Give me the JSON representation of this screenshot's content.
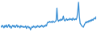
{
  "chart_data": {
    "type": "line",
    "color": "#3a8fd4",
    "ylim": [
      0,
      100
    ],
    "tick_labels": false,
    "values": [
      26,
      22,
      28,
      24,
      20,
      27,
      23,
      29,
      21,
      25,
      30,
      22,
      26,
      19,
      24,
      28,
      23,
      27,
      21,
      25,
      29,
      22,
      26,
      24,
      20,
      27,
      23,
      25,
      21,
      24,
      22,
      26,
      18,
      23,
      25,
      20,
      22,
      14,
      19,
      24,
      21,
      26,
      23,
      20,
      25,
      22,
      27,
      24,
      21,
      26,
      23,
      28,
      25,
      22,
      27,
      24,
      29,
      26,
      35,
      38,
      36,
      40,
      37,
      39,
      36,
      41,
      38,
      37,
      40,
      42,
      80,
      45,
      40,
      44,
      42,
      47,
      43,
      46,
      56,
      44,
      41,
      45,
      48,
      43,
      46,
      44,
      49,
      45,
      47,
      43,
      50,
      46,
      44,
      48,
      45,
      52,
      70,
      98,
      55,
      34,
      30,
      26,
      24,
      22,
      28,
      33,
      38,
      35,
      40,
      37,
      42,
      39,
      44,
      41,
      46,
      43,
      48,
      50,
      47,
      55
    ]
  }
}
